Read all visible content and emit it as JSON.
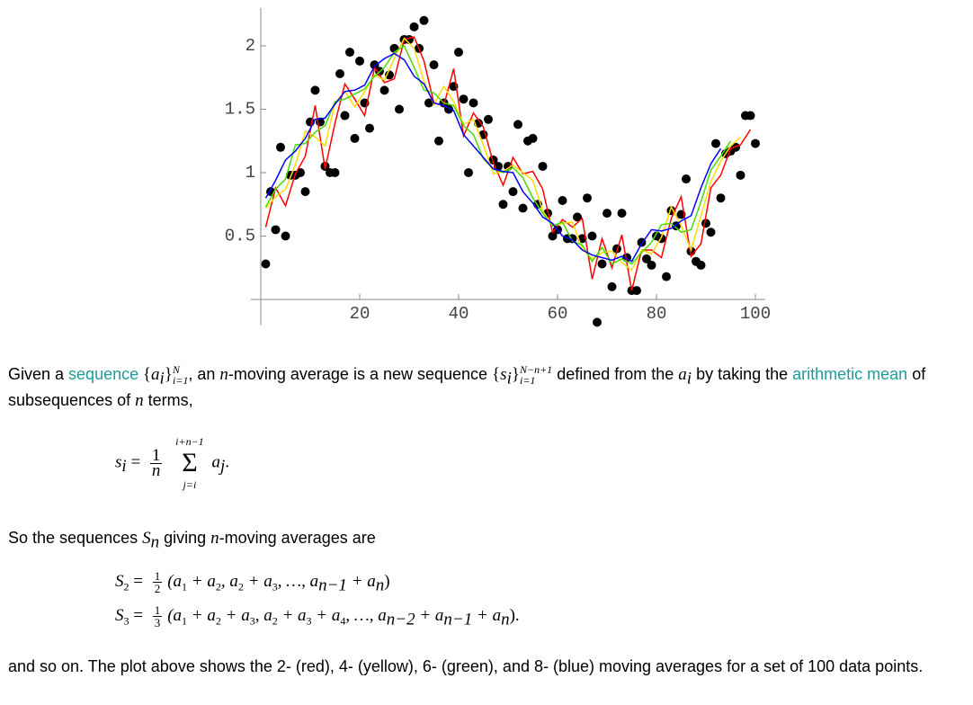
{
  "chart_data": {
    "type": "scatter",
    "xlim": [
      -2,
      102
    ],
    "ylim": [
      -0.2,
      2.3
    ],
    "xticks": [
      20,
      40,
      60,
      80,
      100
    ],
    "yticks": [
      0.5,
      1,
      1.5,
      2
    ],
    "points": {
      "color": "#000000",
      "x": [
        1,
        2,
        3,
        4,
        5,
        6,
        7,
        8,
        9,
        10,
        11,
        12,
        13,
        14,
        15,
        16,
        17,
        18,
        19,
        20,
        21,
        22,
        23,
        24,
        25,
        26,
        27,
        28,
        29,
        30,
        31,
        32,
        33,
        34,
        35,
        36,
        37,
        38,
        39,
        40,
        41,
        42,
        43,
        44,
        45,
        46,
        47,
        48,
        49,
        50,
        51,
        52,
        53,
        54,
        55,
        56,
        57,
        58,
        59,
        60,
        61,
        62,
        63,
        64,
        65,
        66,
        67,
        68,
        69,
        70,
        71,
        72,
        73,
        74,
        75,
        76,
        77,
        78,
        79,
        80,
        81,
        82,
        83,
        84,
        85,
        86,
        87,
        88,
        89,
        90,
        91,
        92,
        93,
        94,
        95,
        96,
        97,
        98,
        99,
        100
      ],
      "values": [
        0.28,
        0.85,
        0.55,
        1.2,
        0.5,
        0.98,
        0.98,
        1.0,
        0.85,
        1.4,
        1.65,
        1.4,
        1.05,
        1.0,
        1.0,
        1.78,
        1.45,
        1.95,
        1.27,
        1.88,
        1.55,
        1.35,
        1.85,
        1.8,
        1.65,
        1.77,
        1.98,
        1.5,
        2.05,
        2.05,
        2.15,
        1.98,
        2.2,
        1.55,
        1.85,
        1.25,
        1.55,
        1.5,
        1.68,
        1.95,
        1.58,
        1.0,
        1.55,
        1.39,
        1.3,
        1.42,
        1.1,
        1.05,
        0.75,
        1.05,
        0.85,
        1.38,
        0.72,
        1.25,
        1.27,
        0.75,
        1.05,
        0.68,
        0.5,
        0.55,
        0.78,
        0.48,
        0.48,
        0.65,
        0.48,
        0.8,
        0.5,
        -0.18,
        0.28,
        0.68,
        0.1,
        0.4,
        0.68,
        0.33,
        0.07,
        0.07,
        0.45,
        0.32,
        0.27,
        0.5,
        0.48,
        0.18,
        0.7,
        0.58,
        0.67,
        0.95,
        0.38,
        0.3,
        0.27,
        0.6,
        0.53,
        1.23,
        0.8,
        1.15,
        1.17,
        1.2,
        0.98,
        1.45,
        1.45,
        1.23
      ]
    },
    "series": [
      {
        "color": "#ff0000",
        "x": [
          1,
          3,
          5,
          7,
          9,
          11,
          13,
          15,
          17,
          19,
          21,
          23,
          25,
          27,
          29,
          31,
          33,
          35,
          37,
          39,
          41,
          43,
          45,
          47,
          49,
          51,
          53,
          55,
          57,
          59,
          61,
          63,
          65,
          67,
          69,
          71,
          73,
          75,
          77,
          79,
          81,
          83,
          85,
          87,
          89,
          91,
          93,
          95,
          97,
          99
        ],
        "values": [
          0.57,
          0.88,
          0.74,
          0.99,
          1.13,
          1.53,
          1.03,
          1.39,
          1.7,
          1.58,
          1.45,
          1.83,
          1.71,
          1.74,
          2.05,
          2.07,
          1.88,
          1.55,
          1.53,
          1.82,
          1.29,
          1.47,
          1.36,
          1.08,
          0.9,
          1.12,
          0.99,
          1.01,
          0.87,
          0.53,
          0.63,
          0.57,
          0.64,
          0.16,
          0.48,
          0.25,
          0.51,
          0.07,
          0.39,
          0.39,
          0.33,
          0.64,
          0.81,
          0.34,
          0.44,
          0.88,
          0.98,
          1.19,
          1.22,
          1.34
        ]
      },
      {
        "color": "#ffdd00",
        "x": [
          1,
          3,
          5,
          7,
          9,
          11,
          13,
          15,
          17,
          19,
          21,
          23,
          25,
          27,
          29,
          31,
          33,
          35,
          37,
          39,
          41,
          43,
          45,
          47,
          49,
          51,
          53,
          55,
          57,
          59,
          61,
          63,
          65,
          67,
          69,
          71,
          73,
          75,
          77,
          79,
          81,
          83,
          85,
          87,
          89,
          91,
          93,
          95,
          97
        ],
        "values": [
          0.72,
          0.81,
          0.87,
          1.06,
          1.33,
          1.28,
          1.21,
          1.55,
          1.64,
          1.52,
          1.64,
          1.77,
          1.73,
          1.9,
          2.06,
          1.98,
          1.72,
          1.54,
          1.68,
          1.56,
          1.38,
          1.42,
          1.22,
          0.99,
          1.01,
          1.06,
          1.0,
          0.94,
          0.7,
          0.58,
          0.6,
          0.61,
          0.4,
          0.32,
          0.37,
          0.38,
          0.29,
          0.23,
          0.39,
          0.36,
          0.49,
          0.73,
          0.58,
          0.39,
          0.66,
          0.93,
          1.09,
          1.21,
          1.28
        ]
      },
      {
        "color": "#44dd00",
        "x": [
          1,
          3,
          5,
          7,
          9,
          11,
          13,
          15,
          17,
          19,
          21,
          23,
          25,
          27,
          29,
          31,
          33,
          35,
          37,
          39,
          41,
          43,
          45,
          47,
          49,
          51,
          53,
          55,
          57,
          59,
          61,
          63,
          65,
          67,
          69,
          71,
          73,
          75,
          77,
          79,
          81,
          83,
          85,
          87,
          89,
          91,
          93,
          95
        ],
        "values": [
          0.73,
          0.87,
          0.95,
          1.22,
          1.23,
          1.32,
          1.37,
          1.56,
          1.58,
          1.62,
          1.66,
          1.76,
          1.83,
          1.95,
          2.0,
          1.83,
          1.65,
          1.63,
          1.55,
          1.53,
          1.37,
          1.3,
          1.11,
          1.03,
          1.0,
          1.04,
          0.96,
          0.8,
          0.68,
          0.58,
          0.61,
          0.46,
          0.43,
          0.3,
          0.41,
          0.28,
          0.32,
          0.28,
          0.37,
          0.45,
          0.59,
          0.6,
          0.53,
          0.55,
          0.77,
          1.02,
          1.13,
          1.25
        ]
      },
      {
        "color": "#0000ff",
        "x": [
          1,
          3,
          5,
          7,
          9,
          11,
          13,
          15,
          17,
          19,
          21,
          23,
          25,
          27,
          29,
          31,
          33,
          35,
          37,
          39,
          41,
          43,
          45,
          47,
          49,
          51,
          53,
          55,
          57,
          59,
          61,
          63,
          65,
          67,
          69,
          71,
          73,
          75,
          77,
          79,
          81,
          83,
          85,
          87,
          89,
          91,
          93
        ],
        "values": [
          0.8,
          0.94,
          1.1,
          1.17,
          1.27,
          1.42,
          1.43,
          1.54,
          1.64,
          1.65,
          1.69,
          1.84,
          1.9,
          1.94,
          1.89,
          1.76,
          1.7,
          1.55,
          1.53,
          1.49,
          1.3,
          1.21,
          1.12,
          1.03,
          1.01,
          1.0,
          0.85,
          0.76,
          0.65,
          0.6,
          0.5,
          0.47,
          0.39,
          0.35,
          0.33,
          0.31,
          0.34,
          0.3,
          0.44,
          0.55,
          0.54,
          0.56,
          0.62,
          0.66,
          0.88,
          1.07,
          1.19
        ]
      }
    ]
  },
  "para1": [
    "Given a ",
    "sequence",
    " {",
    "a",
    "i",
    "}",
    "i=1",
    "N",
    ", an ",
    "n",
    "-moving average is a new sequence ",
    "{",
    "s",
    "i",
    "}",
    "i=1",
    "N−n+1",
    " defined from the ",
    "a",
    "i",
    " by taking the ",
    "arithmetic mean",
    " of subsequences of ",
    "n",
    " terms,"
  ],
  "formula1": [
    "s",
    "i",
    "=",
    "1",
    "n",
    "i+n−1",
    "Σ",
    "j=i",
    "a",
    "j",
    "."
  ],
  "para2": [
    "So the sequences ",
    "S",
    "n",
    " giving ",
    "n",
    "-moving averages are"
  ],
  "formula2": [
    "S",
    "2",
    "=",
    "1",
    "2",
    "(a",
    "1",
    " + a",
    "2",
    ", a",
    "2",
    " + a",
    "3",
    ", …, a",
    "n−1",
    " + a",
    "n",
    ")"
  ],
  "formula3": [
    "S",
    "3",
    "=",
    "1",
    "3",
    "(a",
    "1",
    " + a",
    "2",
    " + a",
    "3",
    ", a",
    "2",
    " + a",
    "3",
    " + a",
    "4",
    ", …, a",
    "n−2",
    " + a",
    "n−1",
    " + a",
    "n",
    ")."
  ],
  "para3": "and so on. The plot above shows the 2- (red), 4- (yellow), 6- (green), and 8- (blue) moving averages for a set of 100 data points."
}
